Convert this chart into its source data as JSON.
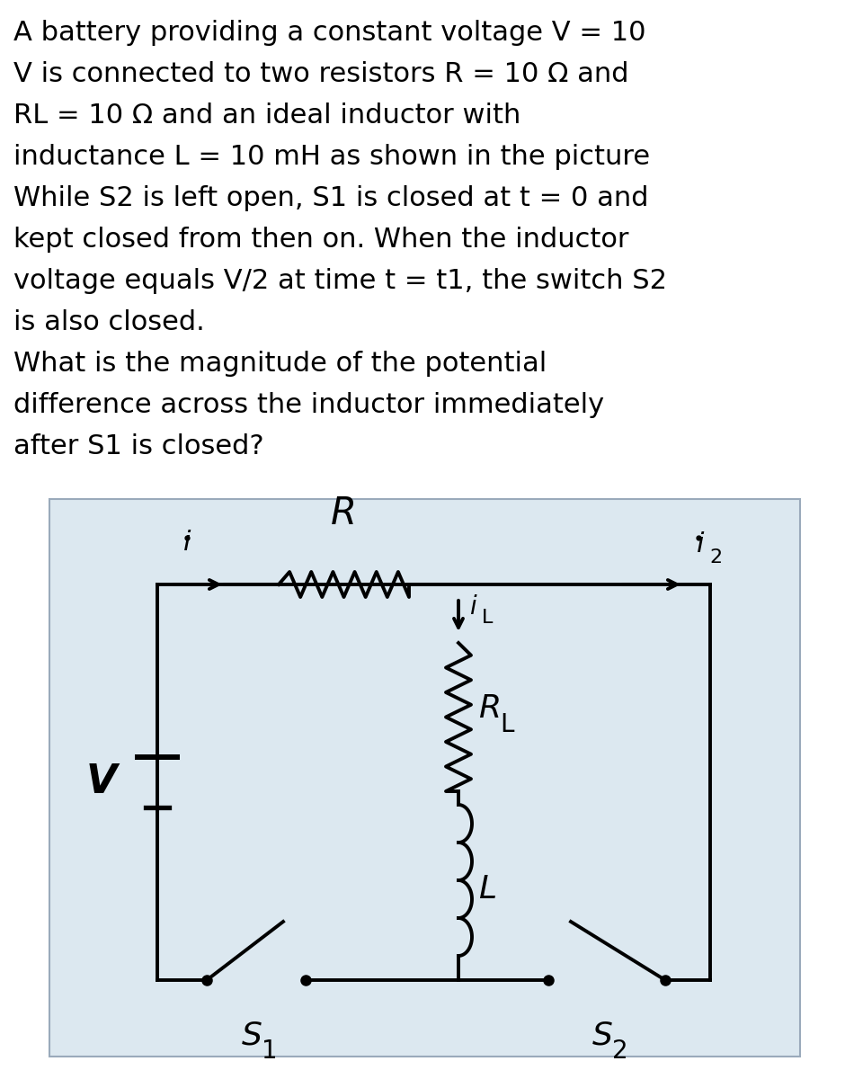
{
  "bg_color": "#ffffff",
  "diagram_bg": "#dce8f0",
  "text_lines": [
    "A battery providing a constant voltage V = 10",
    "V is connected to two resistors R = 10 Ω and",
    "RL = 10 Ω and an ideal inductor with",
    "inductance L = 10 mH as shown in the picture",
    "While S2 is left open, S1 is closed at t = 0 and",
    "kept closed from then on. When the inductor",
    "voltage equals V/2 at time t = t1, the switch S2",
    "is also closed.",
    "What is the magnitude of the potential",
    "difference across the inductor immediately",
    "after S1 is closed?"
  ],
  "font_size_text": 22,
  "lw": 2.8
}
